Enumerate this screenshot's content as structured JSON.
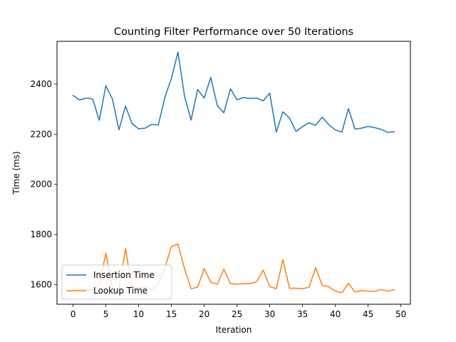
{
  "chart_data": {
    "type": "line",
    "title": "Counting Filter Performance over 50 Iterations",
    "xlabel": "Iteration",
    "ylabel": "Time (ms)",
    "xlim": [
      -2.45,
      51.45
    ],
    "ylim": [
      1522,
      2570
    ],
    "xticks": [
      0,
      5,
      10,
      15,
      20,
      25,
      30,
      35,
      40,
      45,
      50
    ],
    "yticks": [
      1600,
      1800,
      2000,
      2200,
      2400
    ],
    "legend_position": "lower-left",
    "grid": false,
    "x": [
      0,
      1,
      2,
      3,
      4,
      5,
      6,
      7,
      8,
      9,
      10,
      11,
      12,
      13,
      14,
      15,
      16,
      17,
      18,
      19,
      20,
      21,
      22,
      23,
      24,
      25,
      26,
      27,
      28,
      29,
      30,
      31,
      32,
      33,
      34,
      35,
      36,
      37,
      38,
      39,
      40,
      41,
      42,
      43,
      44,
      45,
      46,
      47,
      48,
      49
    ],
    "series": [
      {
        "name": "Insertion Time",
        "color": "#1f77b4",
        "values": [
          2354,
          2336,
          2344,
          2340,
          2255,
          2393,
          2340,
          2217,
          2312,
          2242,
          2221,
          2224,
          2239,
          2237,
          2347,
          2422,
          2527,
          2351,
          2256,
          2378,
          2344,
          2426,
          2314,
          2285,
          2381,
          2337,
          2346,
          2342,
          2344,
          2333,
          2363,
          2208,
          2289,
          2265,
          2211,
          2230,
          2245,
          2235,
          2268,
          2238,
          2217,
          2208,
          2302,
          2220,
          2224,
          2231,
          2226,
          2219,
          2207,
          2210
        ]
      },
      {
        "name": "Lookup Time",
        "color": "#ff7f0e",
        "values": [
          1580,
          1578,
          1578,
          1580,
          1598,
          1726,
          1586,
          1586,
          1744,
          1586,
          1588,
          1590,
          1582,
          1600,
          1668,
          1752,
          1762,
          1664,
          1584,
          1590,
          1664,
          1610,
          1602,
          1662,
          1604,
          1602,
          1604,
          1604,
          1612,
          1658,
          1592,
          1584,
          1700,
          1586,
          1586,
          1584,
          1590,
          1668,
          1597,
          1592,
          1574,
          1568,
          1605,
          1571,
          1577,
          1574,
          1574,
          1580,
          1574,
          1580
        ]
      }
    ]
  }
}
